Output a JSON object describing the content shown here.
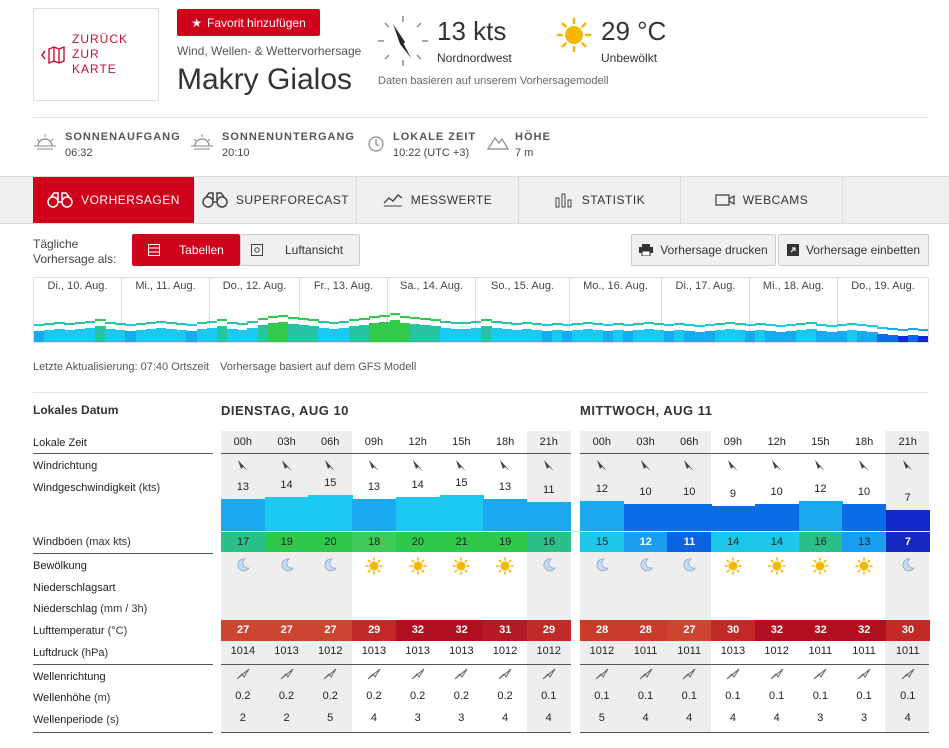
{
  "header": {
    "back_label_1": "ZURÜCK ZUR",
    "back_label_2": "KARTE",
    "favorite_label": "Favorit hinzufügen",
    "subtitle": "Wind, Wellen- & Wettervorhersage",
    "city": "Makry Gialos",
    "wind_value": "13 kts",
    "wind_direction": "Nordnordwest",
    "temperature": "29 °C",
    "sky": "Unbewölkt",
    "model_note": "Daten basieren auf unserem Vorhersagemodell"
  },
  "info": [
    {
      "title": "SONNENAUFGANG",
      "value": "06:32",
      "icon": "sunrise-icon"
    },
    {
      "title": "SONNENUNTERGANG",
      "value": "20:10",
      "icon": "sunset-icon"
    },
    {
      "title": "LOKALE ZEIT",
      "value": "10:22 (UTC +3)",
      "icon": "clock-icon"
    },
    {
      "title": "HÖHE",
      "value": "7 m",
      "icon": "mountain-icon"
    }
  ],
  "tabs": [
    {
      "label": "VORHERSAGEN",
      "icon": "binoculars-icon",
      "active": true
    },
    {
      "label": "SUPERFORECAST",
      "icon": "binoculars-icon",
      "active": false
    },
    {
      "label": "MESSWERTE",
      "icon": "chart-line-icon",
      "active": false
    },
    {
      "label": "STATISTIK",
      "icon": "statistics-icon",
      "active": false
    },
    {
      "label": "WEBCAMS",
      "icon": "camera-icon",
      "active": false
    }
  ],
  "view": {
    "label_1": "Tägliche",
    "label_2": "Vorhersage als:",
    "tables": "Tabellen",
    "aerial": "Luftansicht",
    "print": "Vorhersage drucken",
    "embed": "Vorhersage einbetten"
  },
  "days": [
    "Di., 10. Aug.",
    "Mi., 11. Aug.",
    "Do., 12. Aug.",
    "Fr., 13. Aug.",
    "Sa., 14. Aug.",
    "So., 15. Aug.",
    "Mo., 16. Aug.",
    "Di., 17. Aug.",
    "Mi., 18. Aug.",
    "Do., 19. Aug."
  ],
  "update": {
    "last_update": "Letzte Aktualisierung: 07:40 Ortszeit",
    "model": "Vorhersage basiert auf dem GFS Modell"
  },
  "labels": {
    "local_date": "Lokales Datum",
    "local_time": "Lokale Zeit",
    "wind_dir": "Windrichtung",
    "wind_speed": "Windgeschwindigkeit",
    "wind_speed_unit": "(kts)",
    "gusts": "Windböen",
    "gusts_unit": "(max kts)",
    "clouds": "Bewölkung",
    "precip_type": "Niederschlagsart",
    "precip": "Niederschlag",
    "precip_unit": "(mm / 3h)",
    "temp": "Lufttemperatur",
    "temp_unit": "(°C)",
    "pressure": "Luftdruck",
    "pressure_unit": "(hPa)",
    "wave_dir": "Wellenrichtung",
    "wave_height": "Wellenhöhe",
    "wave_height_unit": "(m)",
    "wave_period": "Wellenperiode",
    "wave_period_unit": "(s)"
  },
  "forecast": {
    "day1": "DIENSTAG, AUG 10",
    "day2": "MITTWOCH, AUG 11",
    "hours": [
      "00h",
      "03h",
      "06h",
      "09h",
      "12h",
      "15h",
      "18h",
      "21h",
      "00h",
      "03h",
      "06h",
      "09h",
      "12h",
      "15h",
      "18h",
      "21h"
    ],
    "wind": [
      "13",
      "14",
      "15",
      "13",
      "14",
      "15",
      "13",
      "11",
      "12",
      "10",
      "10",
      "9",
      "10",
      "12",
      "10",
      "7"
    ],
    "gusts": [
      "17",
      "19",
      "20",
      "18",
      "20",
      "21",
      "19",
      "16",
      "15",
      "12",
      "11",
      "14",
      "14",
      "16",
      "13",
      "7"
    ],
    "sky": [
      "moon",
      "moon",
      "moon",
      "sun",
      "sun",
      "sun",
      "sun",
      "moon",
      "moon",
      "moon",
      "moon",
      "sun",
      "sun",
      "sun",
      "sun",
      "moon"
    ],
    "temp": [
      "27",
      "27",
      "27",
      "29",
      "32",
      "32",
      "31",
      "29",
      "28",
      "28",
      "27",
      "30",
      "32",
      "32",
      "32",
      "30"
    ],
    "pressure": [
      "1014",
      "1013",
      "1012",
      "1013",
      "1013",
      "1013",
      "1012",
      "1012",
      "1012",
      "1011",
      "1011",
      "1013",
      "1012",
      "1011",
      "1011",
      "1011"
    ],
    "wave_height": [
      "0.2",
      "0.2",
      "0.2",
      "0.2",
      "0.2",
      "0.2",
      "0.2",
      "0.1",
      "0.1",
      "0.1",
      "0.1",
      "0.1",
      "0.1",
      "0.1",
      "0.1",
      "0.1"
    ],
    "wave_period": [
      "2",
      "2",
      "5",
      "4",
      "3",
      "3",
      "4",
      "4",
      "5",
      "4",
      "4",
      "4",
      "4",
      "3",
      "3",
      "4"
    ]
  }
}
